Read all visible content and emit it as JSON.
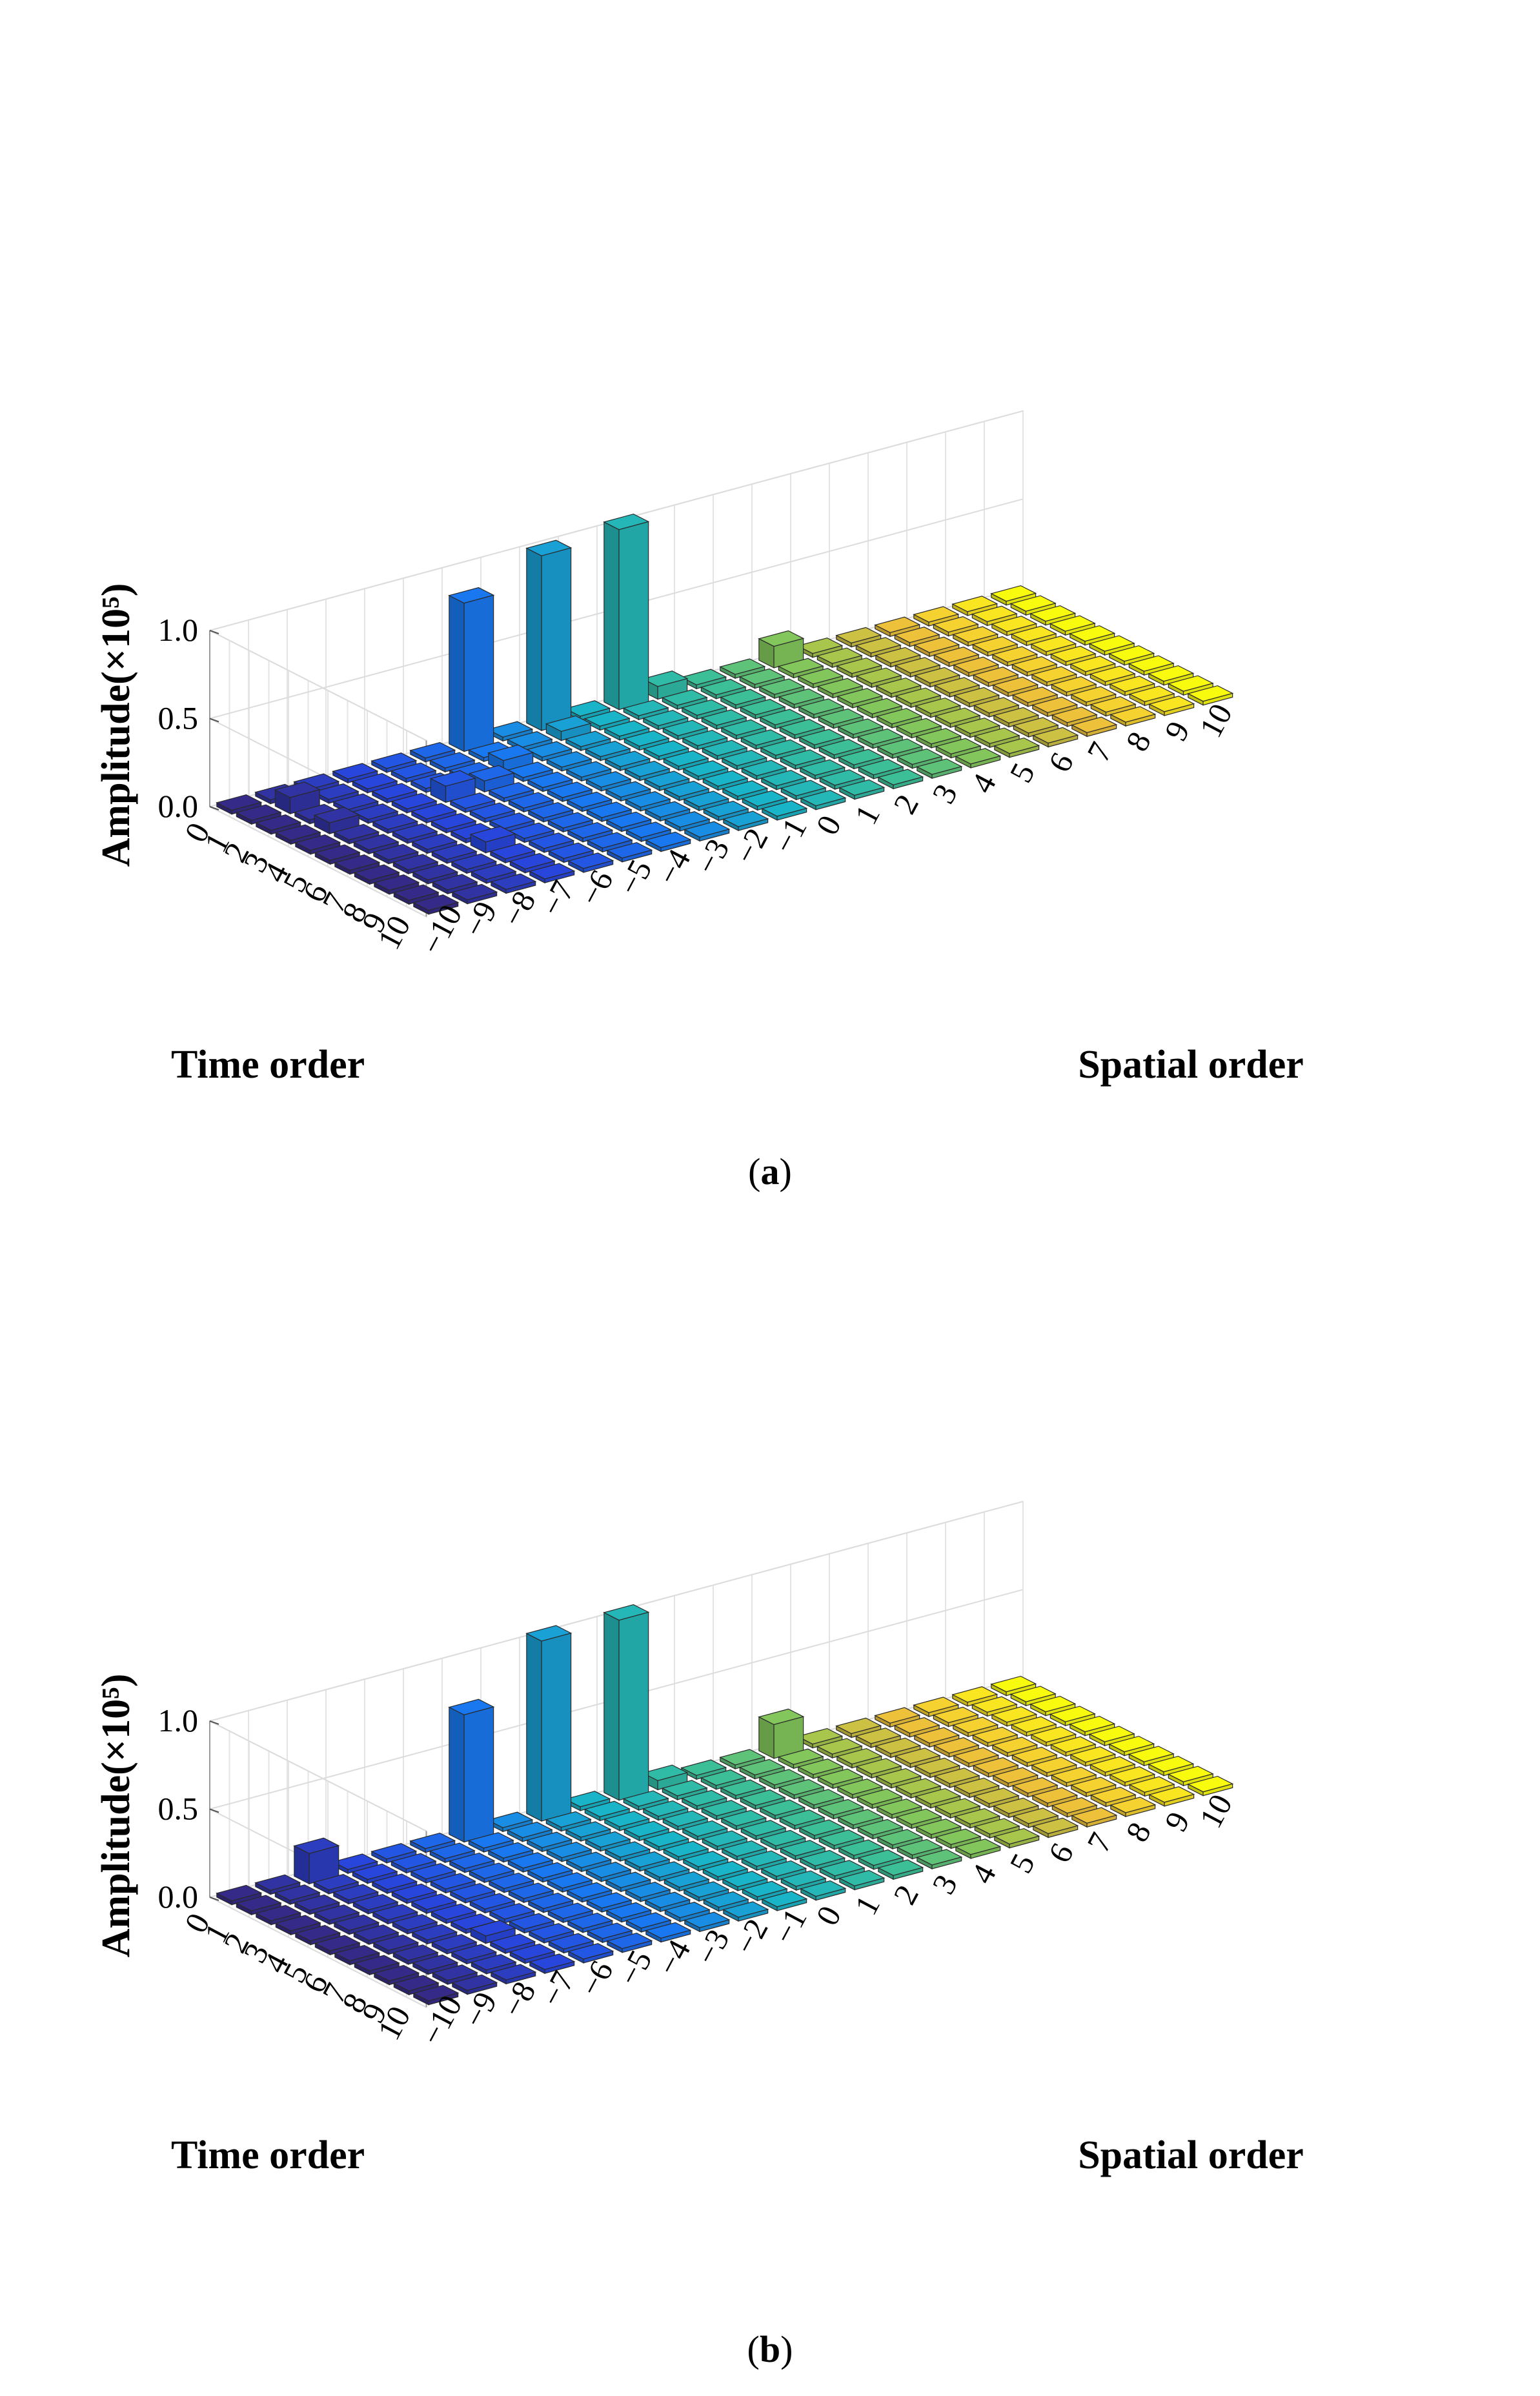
{
  "chart_data": [
    {
      "type": "bar3d",
      "panel_label": "a",
      "title": "",
      "xlabel": "Time order",
      "ylabel": "Spatial order",
      "zlabel": "Amplitude(×10⁵)",
      "time_orders": [
        0,
        1,
        2,
        3,
        4,
        5,
        6,
        7,
        8,
        9,
        10
      ],
      "spatial_orders": [
        -10,
        -9,
        -8,
        -7,
        -6,
        -5,
        -4,
        -3,
        -2,
        -1,
        0,
        1,
        2,
        3,
        4,
        5,
        6,
        7,
        8,
        9,
        10
      ],
      "x_tick_labels": [
        "0",
        "1",
        "2",
        "3",
        "4",
        "5",
        "6",
        "7",
        "8",
        "9",
        "10"
      ],
      "y_tick_labels": [
        "−10",
        "−9",
        "−8",
        "−7",
        "−6",
        "−5",
        "−4",
        "−3",
        "−2",
        "−1",
        "0",
        "1",
        "2",
        "3",
        "4",
        "5",
        "6",
        "7",
        "8",
        "9",
        "10"
      ],
      "z_tick_labels": [
        "0.0",
        "0.5",
        "1.0"
      ],
      "zlim": [
        0,
        1.0
      ],
      "grid": true,
      "baseline": 0.0,
      "peaks": [
        {
          "time": 0,
          "spatial": -4,
          "value": 0.82
        },
        {
          "time": 0,
          "spatial": -2,
          "value": 0.97
        },
        {
          "time": 0,
          "spatial": 0,
          "value": 1.0
        },
        {
          "time": 0,
          "spatial": 4,
          "value": 0.1
        },
        {
          "time": 1,
          "spatial": -9,
          "value": 0.07
        },
        {
          "time": 0,
          "spatial": 1,
          "value": 0.05
        },
        {
          "time": 3,
          "spatial": -9,
          "value": 0.04
        },
        {
          "time": 3,
          "spatial": -6,
          "value": 0.07
        },
        {
          "time": 3,
          "spatial": -5,
          "value": 0.04
        },
        {
          "time": 2,
          "spatial": -4,
          "value": 0.04
        },
        {
          "time": 1,
          "spatial": -2,
          "value": 0.03
        },
        {
          "time": 7,
          "spatial": -7,
          "value": 0.04
        }
      ]
    },
    {
      "type": "bar3d",
      "panel_label": "b",
      "title": "",
      "xlabel": "Time order",
      "ylabel": "Spatial order",
      "zlabel": "Amplitude(×10⁵)",
      "time_orders": [
        0,
        1,
        2,
        3,
        4,
        5,
        6,
        7,
        8,
        9,
        10
      ],
      "spatial_orders": [
        -10,
        -9,
        -8,
        -7,
        -6,
        -5,
        -4,
        -3,
        -2,
        -1,
        0,
        1,
        2,
        3,
        4,
        5,
        6,
        7,
        8,
        9,
        10
      ],
      "x_tick_labels": [
        "0",
        "1",
        "2",
        "3",
        "4",
        "5",
        "6",
        "7",
        "8",
        "9",
        "10"
      ],
      "y_tick_labels": [
        "−10",
        "−9",
        "−8",
        "−7",
        "−6",
        "−5",
        "−4",
        "−3",
        "−2",
        "−1",
        "0",
        "1",
        "2",
        "3",
        "4",
        "5",
        "6",
        "7",
        "8",
        "9",
        "10"
      ],
      "z_tick_labels": [
        "0.0",
        "0.5",
        "1.0"
      ],
      "zlim": [
        0,
        1.0
      ],
      "grid": true,
      "baseline": 0.0,
      "peaks": [
        {
          "time": 0,
          "spatial": -8,
          "value": 0.15
        },
        {
          "time": 0,
          "spatial": -4,
          "value": 0.7
        },
        {
          "time": 0,
          "spatial": -2,
          "value": 1.0
        },
        {
          "time": 0,
          "spatial": 0,
          "value": 1.0
        },
        {
          "time": 0,
          "spatial": 4,
          "value": 0.17
        },
        {
          "time": 0,
          "spatial": 1,
          "value": 0.03
        },
        {
          "time": 7,
          "spatial": -7,
          "value": 0.02
        }
      ]
    }
  ]
}
